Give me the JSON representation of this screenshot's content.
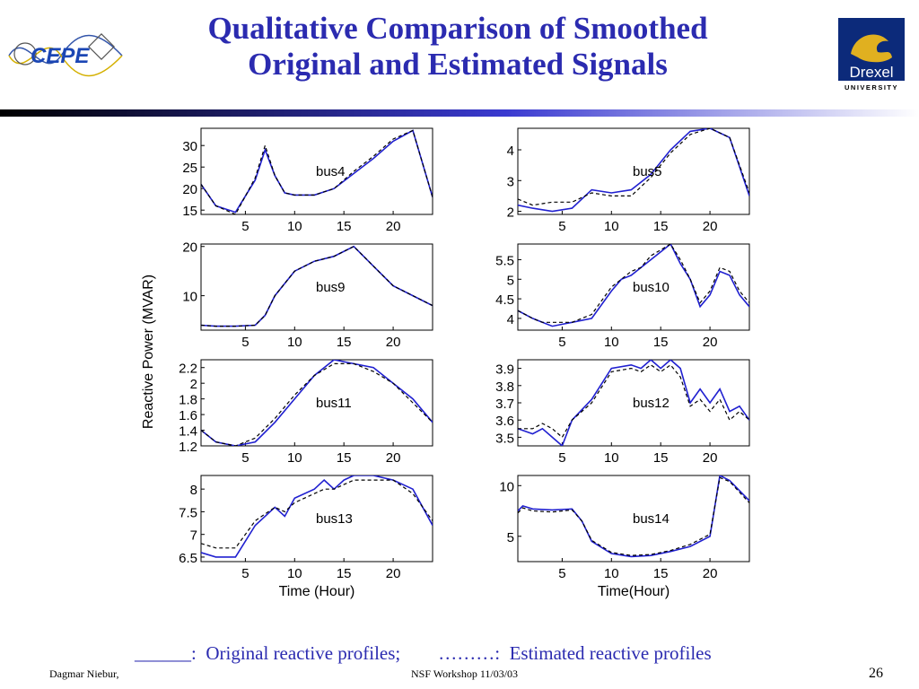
{
  "slide": {
    "title_line1": "Qualitative Comparison of Smoothed",
    "title_line2": "Original and Estimated Signals",
    "left_logo_text": "CEPE",
    "right_logo_name": "Drexel",
    "right_logo_sub": "UNIVERSITY",
    "legend_text": "______:  Original reactive profiles;        ………:  Estimated reactive profiles",
    "footer_author": "Dagmar Niebur,",
    "footer_event": "NSF Workshop 11/03/03",
    "page_number": "26",
    "colors": {
      "title": "#2b2bb0",
      "original_line": "#2020d0",
      "estimated_line": "#000000"
    }
  },
  "chart_data": [
    {
      "type": "line",
      "name": "bus4",
      "ylabel": "",
      "xlabel": "",
      "xlim": [
        0.5,
        24
      ],
      "ylim": [
        14,
        34
      ],
      "yticks": [
        15,
        20,
        25,
        30
      ],
      "xticks": [
        5,
        10,
        15,
        20
      ],
      "x": [
        0.5,
        2,
        4,
        6,
        7,
        8,
        9,
        10,
        12,
        14,
        16,
        18,
        20,
        22,
        24
      ],
      "series": [
        {
          "name": "original",
          "style": "solid",
          "values": [
            21,
            16,
            14.5,
            22,
            29,
            23,
            19,
            18.5,
            18.5,
            20,
            23.5,
            27,
            31,
            33.5,
            18
          ]
        },
        {
          "name": "estimated",
          "style": "dashed",
          "values": [
            21,
            16,
            14,
            22.5,
            30,
            23,
            19,
            18.5,
            18.5,
            20,
            24,
            27.5,
            31.5,
            33.5,
            18
          ]
        }
      ]
    },
    {
      "type": "line",
      "name": "bus5",
      "ylabel": "",
      "xlabel": "",
      "xlim": [
        0.5,
        24
      ],
      "ylim": [
        1.9,
        4.7
      ],
      "yticks": [
        2,
        3,
        4
      ],
      "xticks": [
        5,
        10,
        15,
        20
      ],
      "x": [
        0.5,
        2,
        4,
        6,
        8,
        10,
        12,
        14,
        16,
        18,
        20,
        22,
        24
      ],
      "series": [
        {
          "name": "original",
          "style": "solid",
          "values": [
            2.2,
            2.1,
            2.0,
            2.1,
            2.7,
            2.6,
            2.7,
            3.2,
            4.0,
            4.6,
            4.7,
            4.4,
            2.5
          ]
        },
        {
          "name": "estimated",
          "style": "dashed",
          "values": [
            2.4,
            2.2,
            2.3,
            2.3,
            2.6,
            2.5,
            2.5,
            3.1,
            3.9,
            4.5,
            4.7,
            4.4,
            2.6
          ]
        }
      ]
    },
    {
      "type": "line",
      "name": "bus9",
      "ylabel": "",
      "xlabel": "",
      "xlim": [
        0.5,
        24
      ],
      "ylim": [
        3,
        20.5
      ],
      "yticks": [
        10,
        20
      ],
      "xticks": [
        5,
        10,
        15,
        20
      ],
      "x": [
        0.5,
        2,
        4,
        6,
        7,
        8,
        10,
        12,
        14,
        16,
        18,
        20,
        22,
        24
      ],
      "series": [
        {
          "name": "original",
          "style": "solid",
          "values": [
            4,
            3.8,
            3.8,
            4,
            6,
            10,
            15,
            17,
            18,
            20,
            16,
            12,
            10,
            8
          ]
        },
        {
          "name": "estimated",
          "style": "dashed",
          "values": [
            4,
            3.8,
            3.8,
            4,
            6,
            10,
            15,
            17,
            18,
            20,
            16,
            12,
            10,
            8
          ]
        }
      ]
    },
    {
      "type": "line",
      "name": "bus10",
      "ylabel": "",
      "xlabel": "",
      "xlim": [
        0.5,
        24
      ],
      "ylim": [
        3.7,
        5.9
      ],
      "yticks": [
        4,
        4.5,
        5,
        5.5
      ],
      "xticks": [
        5,
        10,
        15,
        20
      ],
      "x": [
        0.5,
        2,
        3,
        4,
        6,
        8,
        10,
        11,
        12,
        13,
        14,
        16,
        17,
        18,
        19,
        20,
        21,
        22,
        23,
        24
      ],
      "series": [
        {
          "name": "original",
          "style": "solid",
          "values": [
            4.2,
            4.0,
            3.9,
            3.8,
            3.9,
            4.0,
            4.7,
            5.0,
            5.1,
            5.3,
            5.5,
            5.9,
            5.4,
            5.0,
            4.3,
            4.6,
            5.2,
            5.1,
            4.6,
            4.3
          ]
        },
        {
          "name": "estimated",
          "style": "dashed",
          "values": [
            4.2,
            4.0,
            3.9,
            3.9,
            3.9,
            4.1,
            4.8,
            5.0,
            5.2,
            5.3,
            5.6,
            5.9,
            5.5,
            5.0,
            4.4,
            4.7,
            5.3,
            5.2,
            4.7,
            4.4
          ]
        }
      ]
    },
    {
      "type": "line",
      "name": "bus11",
      "ylabel": "",
      "xlabel": "",
      "xlim": [
        0.5,
        24
      ],
      "ylim": [
        1.2,
        2.3
      ],
      "yticks": [
        1.2,
        1.4,
        1.6,
        1.8,
        2,
        2.2
      ],
      "xticks": [
        5,
        10,
        15,
        20
      ],
      "x": [
        0.5,
        2,
        4,
        6,
        8,
        10,
        12,
        14,
        16,
        18,
        20,
        22,
        24
      ],
      "series": [
        {
          "name": "original",
          "style": "solid",
          "values": [
            1.4,
            1.25,
            1.2,
            1.25,
            1.5,
            1.8,
            2.1,
            2.3,
            2.25,
            2.2,
            2.0,
            1.8,
            1.5
          ]
        },
        {
          "name": "estimated",
          "style": "dashed",
          "values": [
            1.4,
            1.25,
            1.2,
            1.3,
            1.55,
            1.85,
            2.1,
            2.25,
            2.25,
            2.15,
            2.0,
            1.75,
            1.5
          ]
        }
      ]
    },
    {
      "type": "line",
      "name": "bus12",
      "ylabel": "",
      "xlabel": "",
      "xlim": [
        0.5,
        24
      ],
      "ylim": [
        3.45,
        3.95
      ],
      "yticks": [
        3.5,
        3.6,
        3.7,
        3.8,
        3.9
      ],
      "xticks": [
        5,
        10,
        15,
        20
      ],
      "x": [
        0.5,
        2,
        3,
        4,
        5,
        6,
        8,
        10,
        12,
        13,
        14,
        15,
        16,
        17,
        18,
        19,
        20,
        21,
        22,
        23,
        24
      ],
      "series": [
        {
          "name": "original",
          "style": "solid",
          "values": [
            3.55,
            3.52,
            3.55,
            3.5,
            3.45,
            3.6,
            3.72,
            3.9,
            3.92,
            3.9,
            3.95,
            3.9,
            3.95,
            3.9,
            3.7,
            3.78,
            3.7,
            3.78,
            3.65,
            3.68,
            3.6
          ]
        },
        {
          "name": "estimated",
          "style": "dashed",
          "values": [
            3.55,
            3.55,
            3.58,
            3.55,
            3.5,
            3.6,
            3.7,
            3.88,
            3.9,
            3.88,
            3.92,
            3.88,
            3.92,
            3.85,
            3.68,
            3.72,
            3.65,
            3.72,
            3.6,
            3.65,
            3.6
          ]
        }
      ]
    },
    {
      "type": "line",
      "name": "bus13",
      "ylabel": "",
      "xlabel": "Time (Hour)",
      "xlim": [
        0.5,
        24
      ],
      "ylim": [
        6.4,
        8.3
      ],
      "yticks": [
        6.5,
        7,
        7.5,
        8
      ],
      "xticks": [
        5,
        10,
        15,
        20
      ],
      "x": [
        0.5,
        2,
        4,
        6,
        8,
        9,
        10,
        12,
        13,
        14,
        15,
        16,
        18,
        20,
        22,
        24
      ],
      "series": [
        {
          "name": "original",
          "style": "solid",
          "values": [
            6.6,
            6.5,
            6.5,
            7.2,
            7.6,
            7.4,
            7.8,
            8.0,
            8.2,
            8.0,
            8.2,
            8.3,
            8.3,
            8.2,
            8.0,
            7.2
          ]
        },
        {
          "name": "estimated",
          "style": "dashed",
          "values": [
            6.8,
            6.7,
            6.7,
            7.3,
            7.6,
            7.5,
            7.7,
            7.9,
            8.0,
            8.0,
            8.1,
            8.2,
            8.2,
            8.2,
            7.9,
            7.3
          ]
        }
      ]
    },
    {
      "type": "line",
      "name": "bus14",
      "ylabel": "",
      "xlabel": "Time(Hour)",
      "xlim": [
        0.5,
        24
      ],
      "ylim": [
        2.5,
        11
      ],
      "yticks": [
        5,
        10
      ],
      "xticks": [
        5,
        10,
        15,
        20
      ],
      "x": [
        0.5,
        1,
        2,
        4,
        6,
        7,
        8,
        10,
        12,
        14,
        16,
        18,
        20,
        21,
        22,
        24
      ],
      "series": [
        {
          "name": "original",
          "style": "solid",
          "values": [
            7.5,
            8.0,
            7.7,
            7.6,
            7.7,
            6.5,
            4.5,
            3.3,
            3.0,
            3.1,
            3.5,
            4.0,
            5.0,
            11.0,
            10.5,
            8.5
          ]
        },
        {
          "name": "estimated",
          "style": "dashed",
          "values": [
            7.3,
            7.8,
            7.5,
            7.4,
            7.6,
            6.5,
            4.6,
            3.4,
            3.1,
            3.2,
            3.6,
            4.2,
            5.2,
            10.8,
            10.4,
            8.3
          ]
        }
      ]
    }
  ],
  "shared_ylabel": "Reactive Power (MVAR)"
}
